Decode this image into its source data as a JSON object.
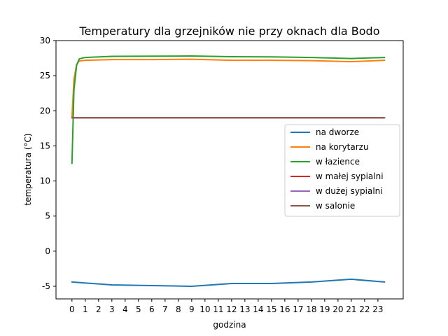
{
  "chart_data": {
    "type": "line",
    "title": "Temperatury dla grzejników nie przy oknach dla Bodo",
    "xlabel": "godzina",
    "ylabel": "temperatura (°C)",
    "xlim": [
      -1.2,
      24.9
    ],
    "ylim": [
      -6.8,
      30
    ],
    "xticks": [
      0,
      1,
      2,
      3,
      4,
      5,
      6,
      7,
      8,
      9,
      10,
      11,
      12,
      13,
      14,
      15,
      16,
      17,
      18,
      19,
      20,
      21,
      22,
      23
    ],
    "yticks": [
      -5,
      0,
      5,
      10,
      15,
      20,
      25,
      30
    ],
    "grid": false,
    "legend": {
      "position": "center-right"
    },
    "series": [
      {
        "name": "na dworze",
        "color": "#1f77b4",
        "x": [
          0,
          3,
          6,
          9,
          12,
          15,
          18,
          21,
          23.5
        ],
        "y": [
          -4.4,
          -4.8,
          -4.9,
          -5.0,
          -4.6,
          -4.6,
          -4.4,
          -4.0,
          -4.4
        ]
      },
      {
        "name": "na korytarzu",
        "color": "#ff7f0e",
        "x": [
          0,
          0.15,
          0.35,
          0.55,
          1.0,
          3,
          6,
          9,
          12,
          15,
          18,
          21,
          23.5
        ],
        "y": [
          19.0,
          24.5,
          26.6,
          27.1,
          27.2,
          27.3,
          27.3,
          27.35,
          27.2,
          27.2,
          27.15,
          27.0,
          27.2
        ]
      },
      {
        "name": "w łazience",
        "color": "#2ca02c",
        "x": [
          0,
          0.15,
          0.35,
          0.55,
          1.0,
          3,
          6,
          9,
          12,
          15,
          18,
          21,
          23.5
        ],
        "y": [
          12.5,
          23.0,
          26.5,
          27.4,
          27.6,
          27.75,
          27.78,
          27.8,
          27.7,
          27.68,
          27.6,
          27.45,
          27.6
        ]
      },
      {
        "name": "w małej sypialni",
        "color": "#d62728",
        "x": [
          0,
          23.5
        ],
        "y": [
          19.0,
          19.0
        ]
      },
      {
        "name": "w dużej sypialni",
        "color": "#9467bd",
        "x": [
          0,
          23.5
        ],
        "y": [
          19.0,
          19.0
        ]
      },
      {
        "name": "w salonie",
        "color": "#8c564b",
        "x": [
          0,
          23.5
        ],
        "y": [
          19.0,
          19.0
        ]
      }
    ]
  }
}
